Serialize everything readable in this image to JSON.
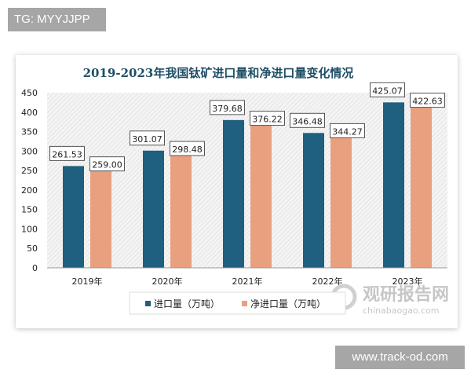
{
  "badge": "TG: MYYJJPP",
  "site": "www.track-od.com",
  "watermark": {
    "cn": "观研报告网",
    "en": "chinabaogao.com"
  },
  "chart_data": {
    "type": "bar",
    "title": "2019-2023年我国钛矿进口量和净进口量变化情况",
    "categories": [
      "2019年",
      "2020年",
      "2021年",
      "2022年",
      "2023年"
    ],
    "series": [
      {
        "name": "进口量（万吨）",
        "color": "#1f5f7f",
        "values": [
          261.53,
          301.07,
          379.68,
          346.48,
          425.07
        ],
        "labels": [
          "261.53",
          "301.07",
          "379.68",
          "346.48",
          "425.07"
        ]
      },
      {
        "name": "净进口量（万吨）",
        "color": "#e8a07e",
        "values": [
          259.0,
          298.48,
          376.22,
          344.27,
          422.63
        ],
        "labels": [
          "259.00",
          "298.48",
          "376.22",
          "344.27",
          "422.63"
        ]
      }
    ],
    "ylim": [
      0,
      450
    ],
    "yticks": [
      "0",
      "50",
      "100",
      "150",
      "200",
      "250",
      "300",
      "350",
      "400",
      "450"
    ],
    "grid": false,
    "background": "hatched",
    "legend": "bottom"
  }
}
